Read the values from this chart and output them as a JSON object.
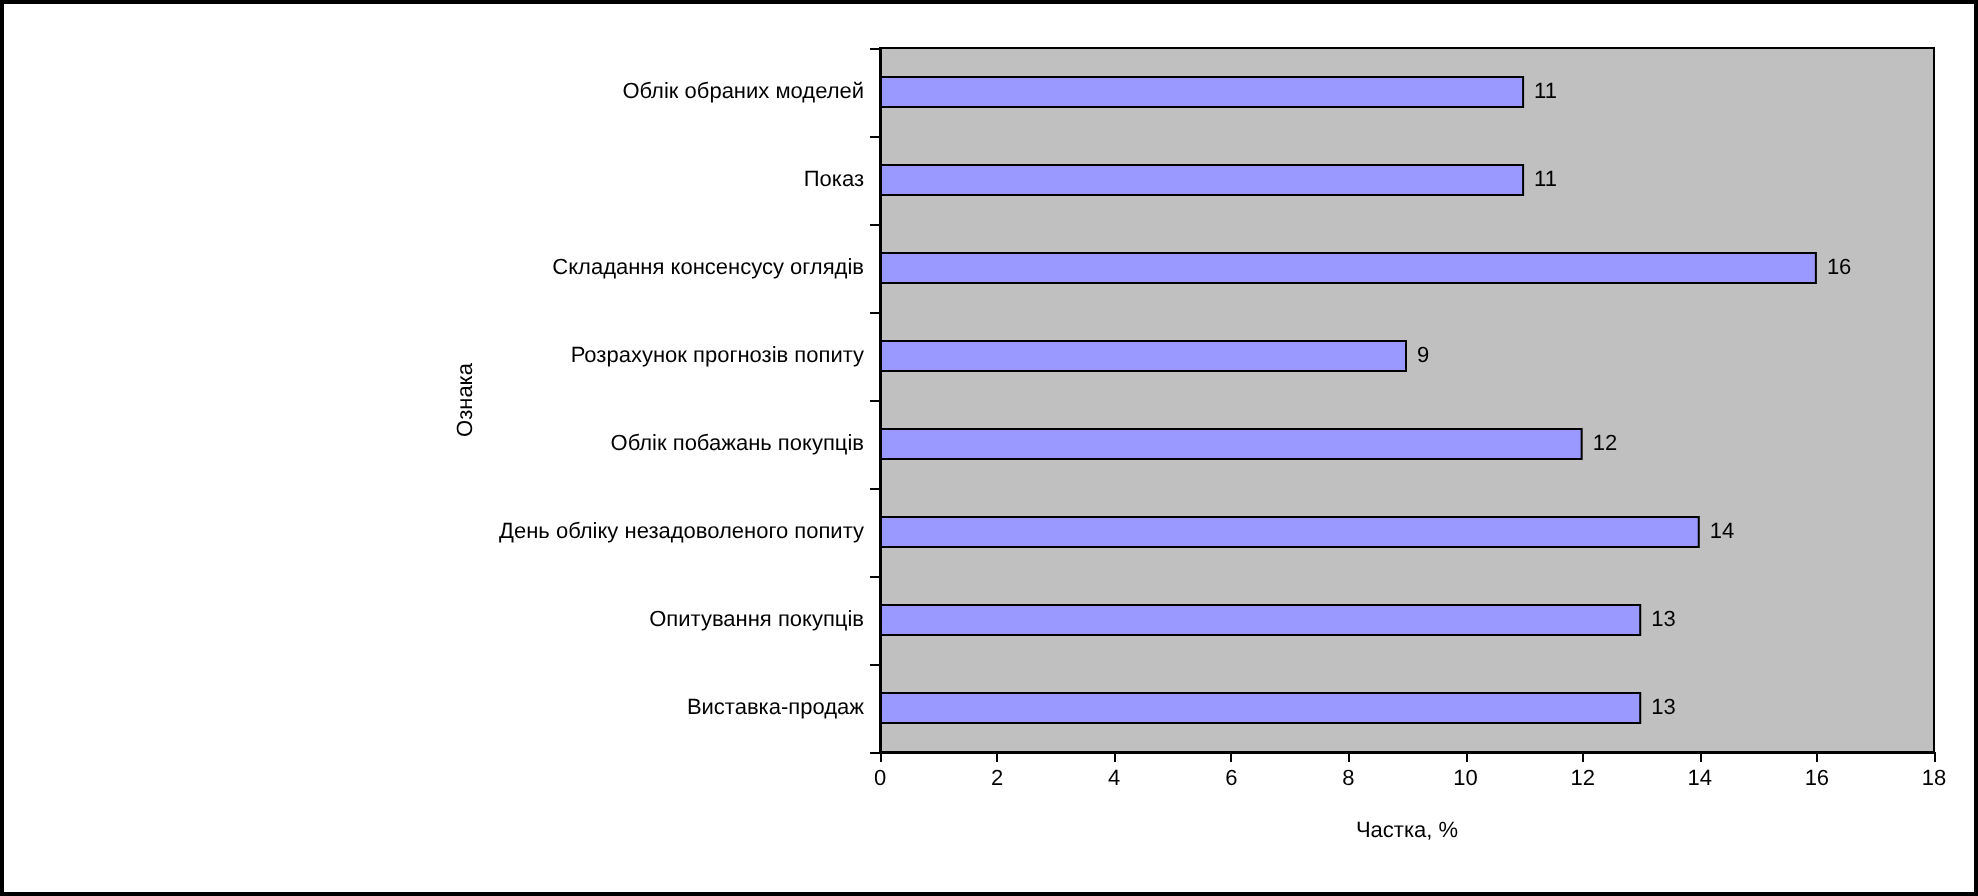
{
  "chart_data": {
    "type": "bar",
    "orientation": "horizontal",
    "xlabel": "Частка, %",
    "ylabel": "Ознака",
    "categories": [
      "Облік обраних моделей",
      "Показ",
      "Складання консенсусу оглядів",
      "Розрахунок прогнозів попиту",
      "Облік побажань покупців",
      "День обліку незадоволеного попиту",
      "Опитування покупців",
      "Виставка-продаж"
    ],
    "values": [
      11,
      11,
      16,
      9,
      12,
      14,
      13,
      13
    ],
    "color": "#9999ff",
    "xlim": [
      0,
      18
    ],
    "xticks": [
      0,
      2,
      4,
      6,
      8,
      10,
      12,
      14,
      16,
      18
    ],
    "data_labels": true,
    "grid": false
  }
}
